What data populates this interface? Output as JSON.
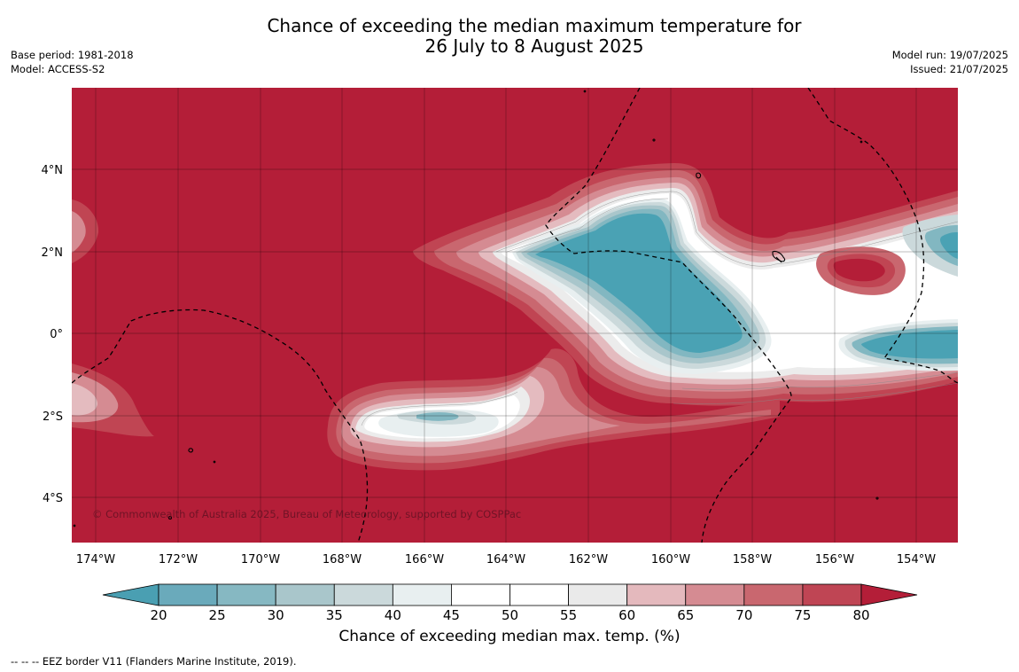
{
  "title": {
    "line1": "Chance of exceeding the median maximum temperature for",
    "line2": "26 July to 8 August 2025"
  },
  "meta_left": {
    "base_period": "Base period: 1981-2018",
    "model": "Model: ACCESS-S2"
  },
  "meta_right": {
    "model_run": "Model run: 19/07/2025",
    "issued": "Issued: 21/07/2025"
  },
  "map": {
    "lat_labels": [
      "4°N",
      "2°N",
      "0°",
      "2°S",
      "4°S"
    ],
    "lon_labels": [
      "174°W",
      "172°W",
      "170°W",
      "168°W",
      "166°W",
      "164°W",
      "162°W",
      "160°W",
      "158°W",
      "156°W",
      "154°W"
    ],
    "copyright": "© Commonwealth of Australia 2025, Bureau of Meteorology, supported by COSPPac",
    "colors": {
      "background": "#b41e38",
      "r75": "#c04553",
      "r70": "#c9676f",
      "r65": "#d58b92",
      "r60": "#e4bbbf",
      "g55": "#ececec",
      "w50": "#ffffff",
      "l40": "#e8eff0",
      "l35": "#cbd9db",
      "l30": "#a9c6cb",
      "b25": "#82b7c1",
      "b20": "#4aa2b4"
    }
  },
  "colorbar": {
    "tick_labels": [
      "20",
      "25",
      "30",
      "35",
      "40",
      "45",
      "50",
      "55",
      "60",
      "65",
      "70",
      "75",
      "80"
    ],
    "colors": [
      "#4a9fb2",
      "#6aaabb",
      "#86b8c2",
      "#a9c6cb",
      "#cbd9db",
      "#e8eff0",
      "#ffffff",
      "#ffffff",
      "#eaeaea",
      "#e4b9bd",
      "#d58b92",
      "#c9676f",
      "#bf4554",
      "#b41e38"
    ],
    "label": "Chance of exceeding median max. temp. (%)"
  },
  "footnote": "--  --  -- EEZ border V11 (Flanders Marine Institute, 2019)."
}
